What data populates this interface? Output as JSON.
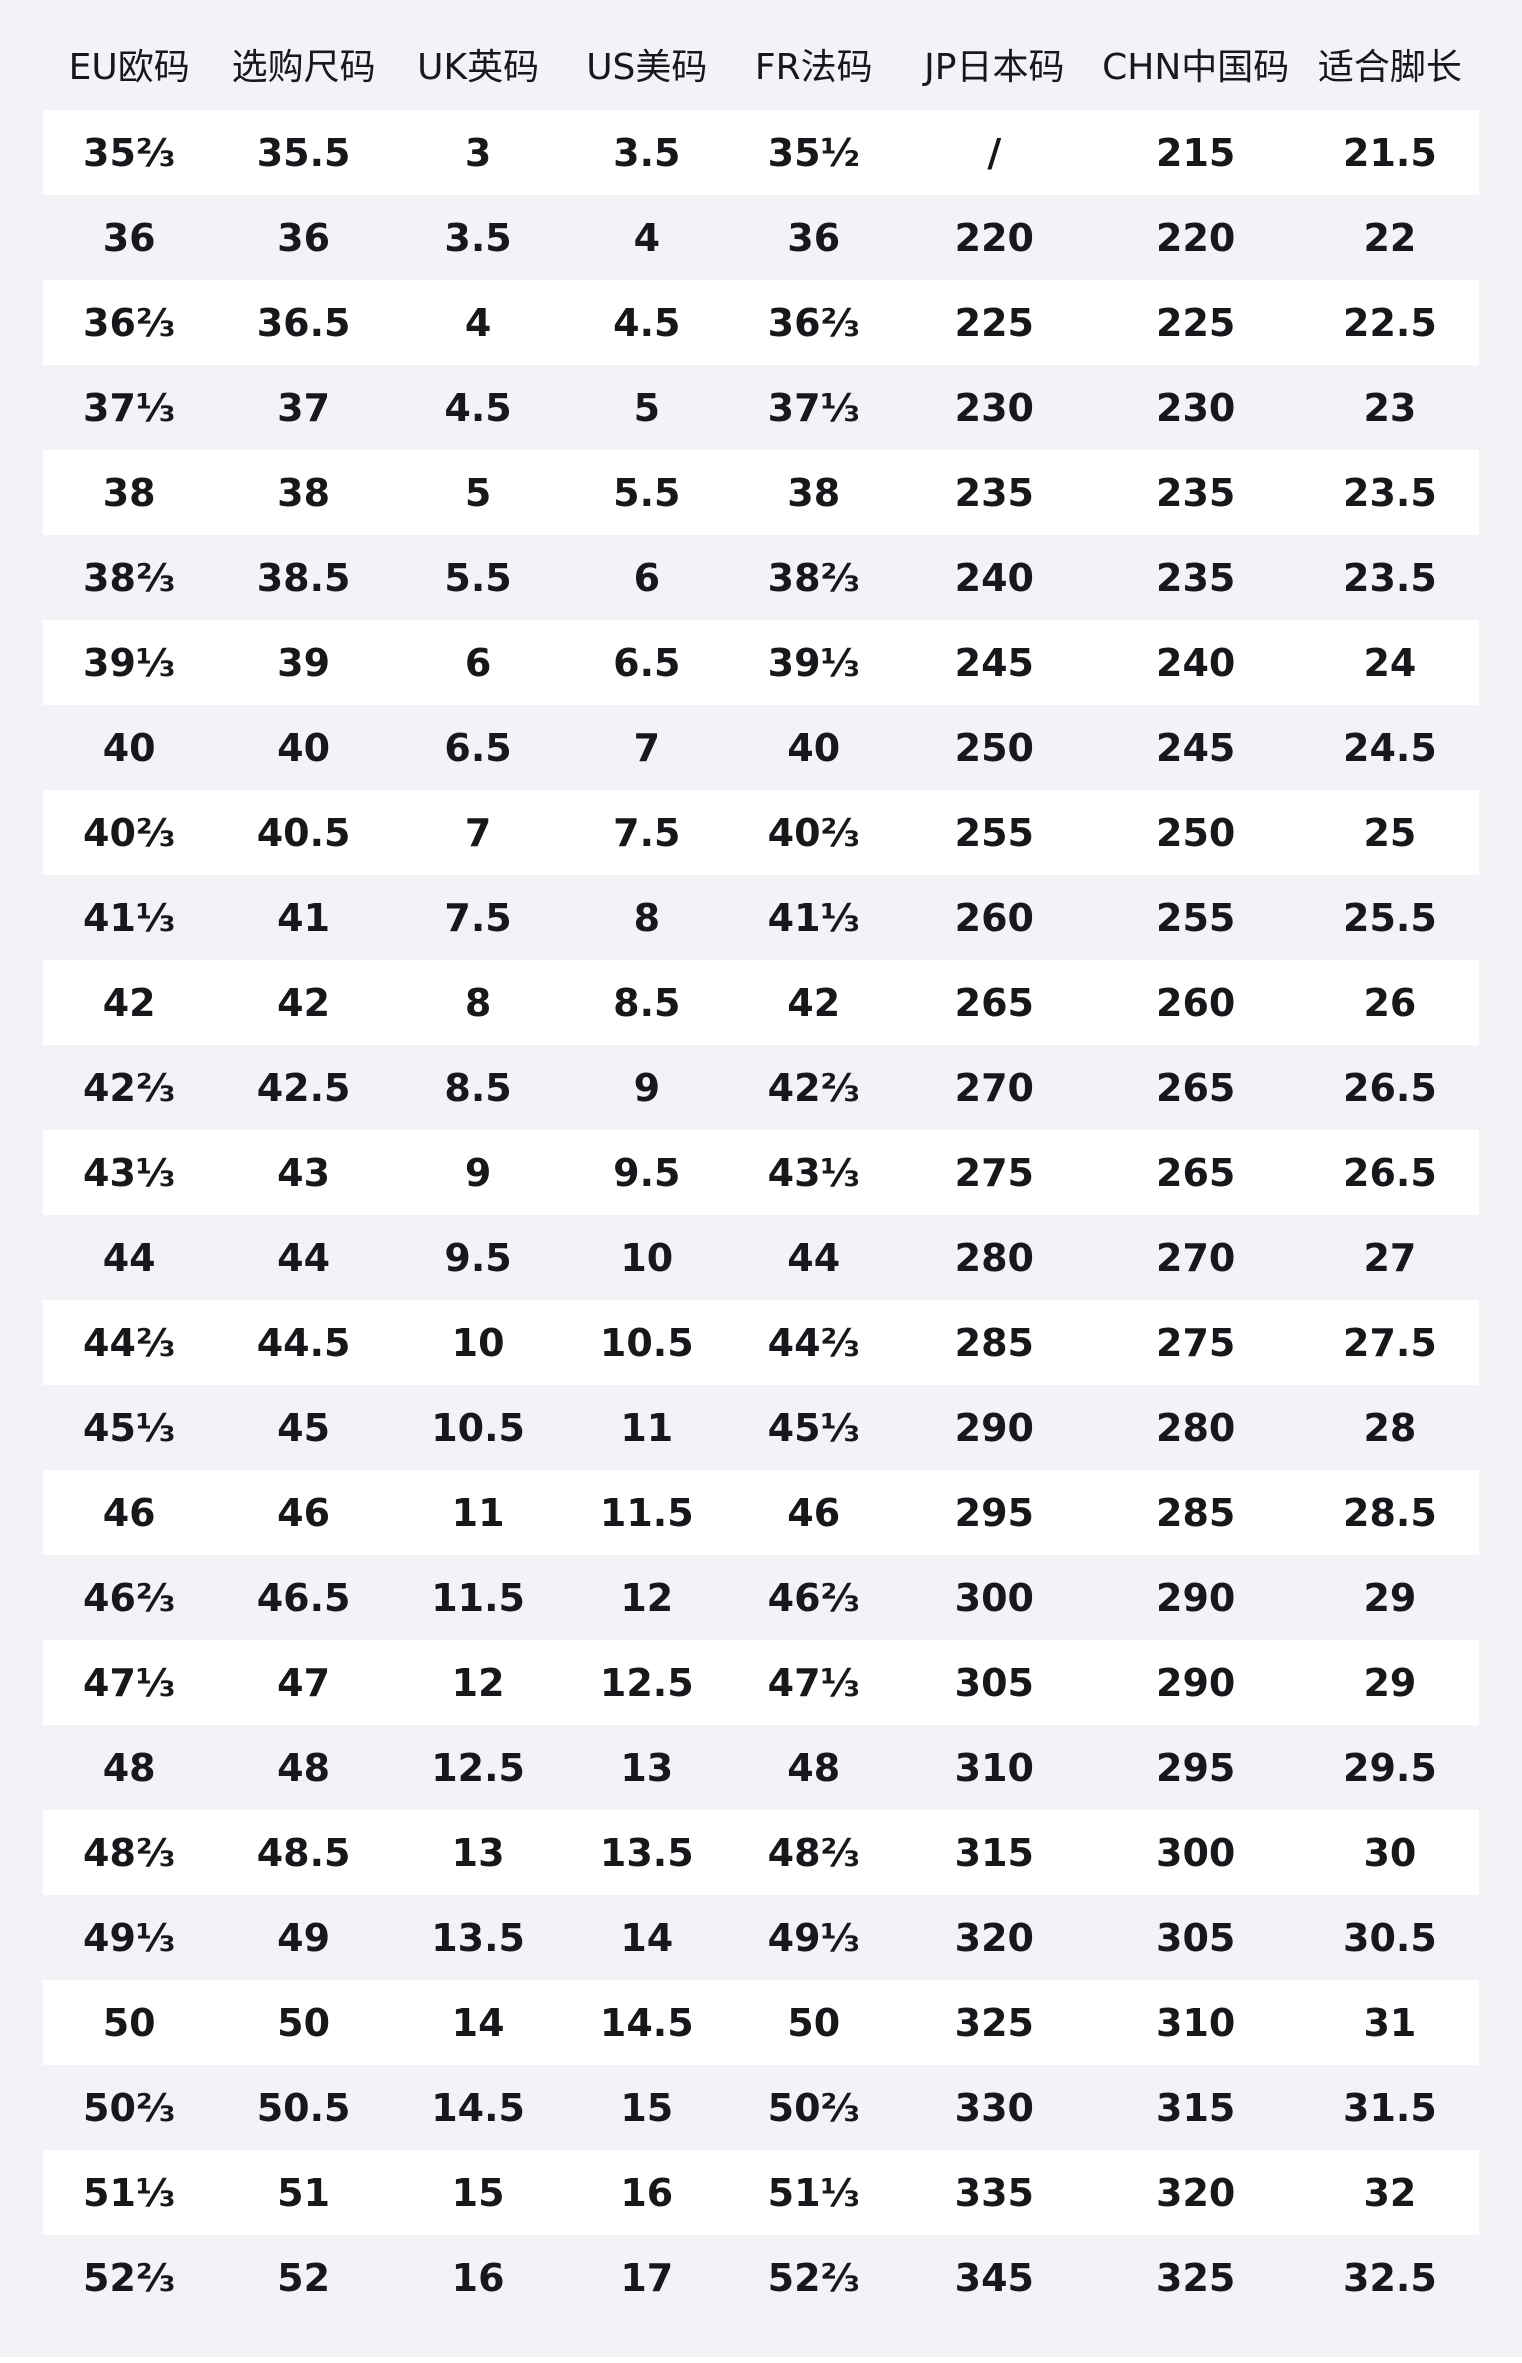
{
  "colors": {
    "page_bg": "#f2f2f7",
    "row_alt_bg": "#ffffff",
    "text": "#17171c"
  },
  "chart_data": {
    "type": "table",
    "title": "",
    "columns": [
      "EU欧码",
      "选购尺码",
      "UK英码",
      "US美码",
      "FR法码",
      "JP日本码",
      "CHN中国码",
      "适合脚长"
    ],
    "column_widths_percent": [
      12.0,
      12.3,
      12.0,
      11.5,
      11.75,
      13.4,
      14.65,
      12.4
    ],
    "rows": [
      [
        "35⅔",
        "35.5",
        "3",
        "3.5",
        "35½",
        "/",
        "215",
        "21.5"
      ],
      [
        "36",
        "36",
        "3.5",
        "4",
        "36",
        "220",
        "220",
        "22"
      ],
      [
        "36⅔",
        "36.5",
        "4",
        "4.5",
        "36⅔",
        "225",
        "225",
        "22.5"
      ],
      [
        "37⅓",
        "37",
        "4.5",
        "5",
        "37⅓",
        "230",
        "230",
        "23"
      ],
      [
        "38",
        "38",
        "5",
        "5.5",
        "38",
        "235",
        "235",
        "23.5"
      ],
      [
        "38⅔",
        "38.5",
        "5.5",
        "6",
        "38⅔",
        "240",
        "235",
        "23.5"
      ],
      [
        "39⅓",
        "39",
        "6",
        "6.5",
        "39⅓",
        "245",
        "240",
        "24"
      ],
      [
        "40",
        "40",
        "6.5",
        "7",
        "40",
        "250",
        "245",
        "24.5"
      ],
      [
        "40⅔",
        "40.5",
        "7",
        "7.5",
        "40⅔",
        "255",
        "250",
        "25"
      ],
      [
        "41⅓",
        "41",
        "7.5",
        "8",
        "41⅓",
        "260",
        "255",
        "25.5"
      ],
      [
        "42",
        "42",
        "8",
        "8.5",
        "42",
        "265",
        "260",
        "26"
      ],
      [
        "42⅔",
        "42.5",
        "8.5",
        "9",
        "42⅔",
        "270",
        "265",
        "26.5"
      ],
      [
        "43⅓",
        "43",
        "9",
        "9.5",
        "43⅓",
        "275",
        "265",
        "26.5"
      ],
      [
        "44",
        "44",
        "9.5",
        "10",
        "44",
        "280",
        "270",
        "27"
      ],
      [
        "44⅔",
        "44.5",
        "10",
        "10.5",
        "44⅔",
        "285",
        "275",
        "27.5"
      ],
      [
        "45⅓",
        "45",
        "10.5",
        "11",
        "45⅓",
        "290",
        "280",
        "28"
      ],
      [
        "46",
        "46",
        "11",
        "11.5",
        "46",
        "295",
        "285",
        "28.5"
      ],
      [
        "46⅔",
        "46.5",
        "11.5",
        "12",
        "46⅔",
        "300",
        "290",
        "29"
      ],
      [
        "47⅓",
        "47",
        "12",
        "12.5",
        "47⅓",
        "305",
        "290",
        "29"
      ],
      [
        "48",
        "48",
        "12.5",
        "13",
        "48",
        "310",
        "295",
        "29.5"
      ],
      [
        "48⅔",
        "48.5",
        "13",
        "13.5",
        "48⅔",
        "315",
        "300",
        "30"
      ],
      [
        "49⅓",
        "49",
        "13.5",
        "14",
        "49⅓",
        "320",
        "305",
        "30.5"
      ],
      [
        "50",
        "50",
        "14",
        "14.5",
        "50",
        "325",
        "310",
        "31"
      ],
      [
        "50⅔",
        "50.5",
        "14.5",
        "15",
        "50⅔",
        "330",
        "315",
        "31.5"
      ],
      [
        "51⅓",
        "51",
        "15",
        "16",
        "51⅓",
        "335",
        "320",
        "32"
      ],
      [
        "52⅔",
        "52",
        "16",
        "17",
        "52⅔",
        "345",
        "325",
        "32.5"
      ]
    ]
  }
}
